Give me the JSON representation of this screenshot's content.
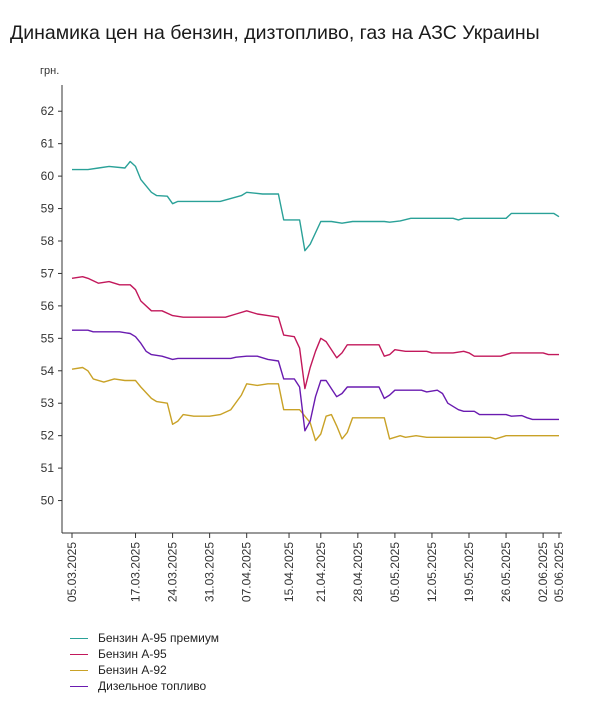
{
  "chart_data": {
    "type": "line",
    "title": "Динамика цен на бензин, дизтопливо, газ на АЗС Украины",
    "ylabel": "грн.",
    "ylim": [
      49,
      62.5
    ],
    "yticks": [
      50,
      51,
      52,
      53,
      54,
      55,
      56,
      57,
      58,
      59,
      60,
      61,
      62
    ],
    "xlim": [
      "2025-03-05",
      "2025-06-05"
    ],
    "x_tick_labels": [
      "05.03.2025",
      "17.03.2025",
      "24.03.2025",
      "31.03.2025",
      "07.04.2025",
      "15.04.2025",
      "21.04.2025",
      "28.04.2025",
      "05.05.2025",
      "12.05.2025",
      "19.05.2025",
      "26.05.2025",
      "02.06.2025",
      "05.06.2025"
    ],
    "x_tick_dates": [
      "2025-03-05",
      "2025-03-17",
      "2025-03-24",
      "2025-03-31",
      "2025-04-07",
      "2025-04-15",
      "2025-04-21",
      "2025-04-28",
      "2025-05-05",
      "2025-05-12",
      "2025-05-19",
      "2025-05-26",
      "2025-06-02",
      "2025-06-05"
    ],
    "grid": false,
    "legend_position": "bottom-left",
    "series": [
      {
        "name": "Бензин А-95 премиум",
        "color": "#2aa198",
        "points": [
          [
            "2025-03-05",
            60.2
          ],
          [
            "2025-03-08",
            60.2
          ],
          [
            "2025-03-10",
            60.25
          ],
          [
            "2025-03-12",
            60.3
          ],
          [
            "2025-03-15",
            60.25
          ],
          [
            "2025-03-16",
            60.45
          ],
          [
            "2025-03-17",
            60.3
          ],
          [
            "2025-03-18",
            59.9
          ],
          [
            "2025-03-20",
            59.5
          ],
          [
            "2025-03-21",
            59.4
          ],
          [
            "2025-03-23",
            59.38
          ],
          [
            "2025-03-24",
            59.15
          ],
          [
            "2025-03-25",
            59.22
          ],
          [
            "2025-04-02",
            59.22
          ],
          [
            "2025-04-06",
            59.4
          ],
          [
            "2025-04-07",
            59.5
          ],
          [
            "2025-04-10",
            59.45
          ],
          [
            "2025-04-13",
            59.45
          ],
          [
            "2025-04-14",
            58.65
          ],
          [
            "2025-04-17",
            58.65
          ],
          [
            "2025-04-18",
            57.7
          ],
          [
            "2025-04-19",
            57.9
          ],
          [
            "2025-04-21",
            58.6
          ],
          [
            "2025-04-23",
            58.6
          ],
          [
            "2025-04-25",
            58.55
          ],
          [
            "2025-04-27",
            58.6
          ],
          [
            "2025-05-03",
            58.6
          ],
          [
            "2025-05-04",
            58.58
          ],
          [
            "2025-05-06",
            58.62
          ],
          [
            "2025-05-08",
            58.7
          ],
          [
            "2025-05-16",
            58.7
          ],
          [
            "2025-05-17",
            58.65
          ],
          [
            "2025-05-18",
            58.7
          ],
          [
            "2025-05-26",
            58.7
          ],
          [
            "2025-05-27",
            58.85
          ],
          [
            "2025-06-04",
            58.85
          ],
          [
            "2025-06-05",
            58.75
          ]
        ]
      },
      {
        "name": "Бензин А-95",
        "color": "#c2185b",
        "points": [
          [
            "2025-03-05",
            56.85
          ],
          [
            "2025-03-07",
            56.9
          ],
          [
            "2025-03-08",
            56.85
          ],
          [
            "2025-03-10",
            56.7
          ],
          [
            "2025-03-12",
            56.75
          ],
          [
            "2025-03-14",
            56.65
          ],
          [
            "2025-03-16",
            56.65
          ],
          [
            "2025-03-17",
            56.5
          ],
          [
            "2025-03-18",
            56.15
          ],
          [
            "2025-03-20",
            55.85
          ],
          [
            "2025-03-22",
            55.85
          ],
          [
            "2025-03-24",
            55.7
          ],
          [
            "2025-03-26",
            55.65
          ],
          [
            "2025-04-03",
            55.65
          ],
          [
            "2025-04-05",
            55.75
          ],
          [
            "2025-04-07",
            55.85
          ],
          [
            "2025-04-09",
            55.75
          ],
          [
            "2025-04-11",
            55.7
          ],
          [
            "2025-04-13",
            55.65
          ],
          [
            "2025-04-14",
            55.1
          ],
          [
            "2025-04-16",
            55.05
          ],
          [
            "2025-04-17",
            54.7
          ],
          [
            "2025-04-18",
            53.45
          ],
          [
            "2025-04-19",
            54.1
          ],
          [
            "2025-04-20",
            54.6
          ],
          [
            "2025-04-21",
            55.0
          ],
          [
            "2025-04-22",
            54.9
          ],
          [
            "2025-04-24",
            54.4
          ],
          [
            "2025-04-25",
            54.55
          ],
          [
            "2025-04-26",
            54.8
          ],
          [
            "2025-05-02",
            54.8
          ],
          [
            "2025-05-03",
            54.45
          ],
          [
            "2025-05-04",
            54.5
          ],
          [
            "2025-05-05",
            54.65
          ],
          [
            "2025-05-07",
            54.6
          ],
          [
            "2025-05-09",
            54.6
          ],
          [
            "2025-05-11",
            54.6
          ],
          [
            "2025-05-12",
            54.55
          ],
          [
            "2025-05-16",
            54.55
          ],
          [
            "2025-05-18",
            54.6
          ],
          [
            "2025-05-19",
            54.55
          ],
          [
            "2025-05-20",
            54.45
          ],
          [
            "2025-05-25",
            54.45
          ],
          [
            "2025-05-27",
            54.55
          ],
          [
            "2025-06-02",
            54.55
          ],
          [
            "2025-06-03",
            54.5
          ],
          [
            "2025-06-05",
            54.5
          ]
        ]
      },
      {
        "name": "Бензин А-92",
        "color": "#c9a227",
        "points": [
          [
            "2025-03-05",
            54.05
          ],
          [
            "2025-03-07",
            54.1
          ],
          [
            "2025-03-08",
            54.0
          ],
          [
            "2025-03-09",
            53.75
          ],
          [
            "2025-03-11",
            53.65
          ],
          [
            "2025-03-13",
            53.75
          ],
          [
            "2025-03-15",
            53.7
          ],
          [
            "2025-03-17",
            53.7
          ],
          [
            "2025-03-18",
            53.5
          ],
          [
            "2025-03-20",
            53.15
          ],
          [
            "2025-03-21",
            53.05
          ],
          [
            "2025-03-23",
            53.0
          ],
          [
            "2025-03-24",
            52.35
          ],
          [
            "2025-03-25",
            52.45
          ],
          [
            "2025-03-26",
            52.65
          ],
          [
            "2025-03-28",
            52.6
          ],
          [
            "2025-03-31",
            52.6
          ],
          [
            "2025-04-02",
            52.65
          ],
          [
            "2025-04-04",
            52.8
          ],
          [
            "2025-04-06",
            53.25
          ],
          [
            "2025-04-07",
            53.6
          ],
          [
            "2025-04-09",
            53.55
          ],
          [
            "2025-04-11",
            53.6
          ],
          [
            "2025-04-13",
            53.6
          ],
          [
            "2025-04-14",
            52.8
          ],
          [
            "2025-04-17",
            52.8
          ],
          [
            "2025-04-18",
            52.6
          ],
          [
            "2025-04-19",
            52.4
          ],
          [
            "2025-04-20",
            51.85
          ],
          [
            "2025-04-21",
            52.05
          ],
          [
            "2025-04-22",
            52.6
          ],
          [
            "2025-04-23",
            52.65
          ],
          [
            "2025-04-24",
            52.3
          ],
          [
            "2025-04-25",
            51.9
          ],
          [
            "2025-04-26",
            52.1
          ],
          [
            "2025-04-27",
            52.55
          ],
          [
            "2025-05-03",
            52.55
          ],
          [
            "2025-05-04",
            51.9
          ],
          [
            "2025-05-05",
            51.95
          ],
          [
            "2025-05-06",
            52.0
          ],
          [
            "2025-05-07",
            51.95
          ],
          [
            "2025-05-09",
            52.0
          ],
          [
            "2025-05-11",
            51.95
          ],
          [
            "2025-05-23",
            51.95
          ],
          [
            "2025-05-24",
            51.9
          ],
          [
            "2025-05-25",
            51.95
          ],
          [
            "2025-05-26",
            52.0
          ],
          [
            "2025-06-05",
            52.0
          ]
        ]
      },
      {
        "name": "Дизельное топливо",
        "color": "#6a1bb0",
        "points": [
          [
            "2025-03-05",
            55.25
          ],
          [
            "2025-03-08",
            55.25
          ],
          [
            "2025-03-09",
            55.2
          ],
          [
            "2025-03-14",
            55.2
          ],
          [
            "2025-03-16",
            55.15
          ],
          [
            "2025-03-17",
            55.05
          ],
          [
            "2025-03-18",
            54.85
          ],
          [
            "2025-03-19",
            54.6
          ],
          [
            "2025-03-20",
            54.5
          ],
          [
            "2025-03-22",
            54.45
          ],
          [
            "2025-03-24",
            54.35
          ],
          [
            "2025-03-25",
            54.38
          ],
          [
            "2025-03-31",
            54.38
          ],
          [
            "2025-04-04",
            54.38
          ],
          [
            "2025-04-05",
            54.42
          ],
          [
            "2025-04-07",
            54.45
          ],
          [
            "2025-04-09",
            54.45
          ],
          [
            "2025-04-11",
            54.35
          ],
          [
            "2025-04-13",
            54.3
          ],
          [
            "2025-04-14",
            53.75
          ],
          [
            "2025-04-16",
            53.75
          ],
          [
            "2025-04-17",
            53.5
          ],
          [
            "2025-04-18",
            52.15
          ],
          [
            "2025-04-19",
            52.45
          ],
          [
            "2025-04-20",
            53.2
          ],
          [
            "2025-04-21",
            53.7
          ],
          [
            "2025-04-22",
            53.7
          ],
          [
            "2025-04-24",
            53.2
          ],
          [
            "2025-04-25",
            53.3
          ],
          [
            "2025-04-26",
            53.5
          ],
          [
            "2025-05-02",
            53.5
          ],
          [
            "2025-05-03",
            53.15
          ],
          [
            "2025-05-04",
            53.25
          ],
          [
            "2025-05-05",
            53.4
          ],
          [
            "2025-05-10",
            53.4
          ],
          [
            "2025-05-11",
            53.35
          ],
          [
            "2025-05-13",
            53.4
          ],
          [
            "2025-05-14",
            53.3
          ],
          [
            "2025-05-15",
            53.0
          ],
          [
            "2025-05-17",
            52.8
          ],
          [
            "2025-05-18",
            52.75
          ],
          [
            "2025-05-20",
            52.75
          ],
          [
            "2025-05-21",
            52.65
          ],
          [
            "2025-05-26",
            52.65
          ],
          [
            "2025-05-27",
            52.6
          ],
          [
            "2025-05-29",
            52.62
          ],
          [
            "2025-05-30",
            52.55
          ],
          [
            "2025-05-31",
            52.5
          ],
          [
            "2025-06-05",
            52.5
          ]
        ]
      }
    ]
  }
}
